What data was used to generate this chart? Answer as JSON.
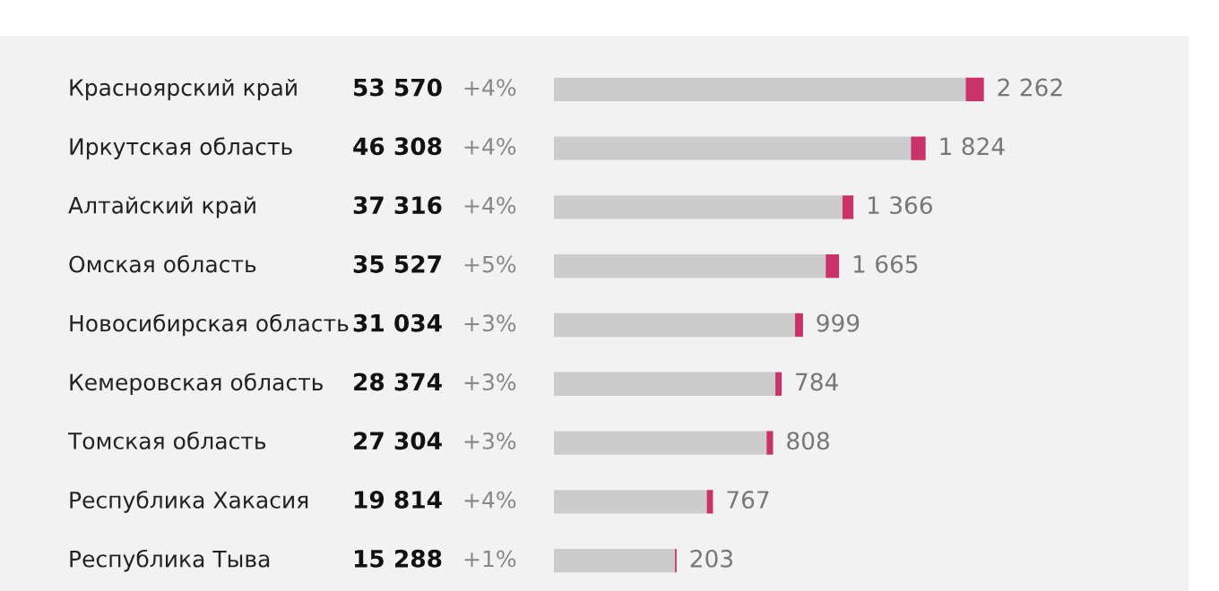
{
  "chart_data": {
    "type": "bar",
    "orientation": "horizontal",
    "stacked": true,
    "categories": [
      "Красноярский край",
      "Иркутская область",
      "Алтайский край",
      "Омская область",
      "Новосибирская область",
      "Кемеровская область",
      "Томская область",
      "Республика Хакасия",
      "Республика Тыва"
    ],
    "series": [
      {
        "color": "#cccccc",
        "values": [
          51308,
          44484,
          35950,
          33862,
          30035,
          27590,
          26496,
          19047,
          15085
        ]
      },
      {
        "color": "#c8336a",
        "values": [
          2262,
          1824,
          1366,
          1665,
          999,
          784,
          808,
          767,
          203
        ],
        "value_labels": [
          "2 262",
          "1 824",
          "1 366",
          "1 665",
          "999",
          "784",
          "808",
          "767",
          "203"
        ]
      }
    ],
    "annotations": [
      "53 570",
      "46 308",
      "37 316",
      "35 527",
      "31 034",
      "28 374",
      "27 304",
      "19 814",
      "15 288",
      "+4%",
      "+4%",
      "+4%",
      "+5%",
      "+3%",
      "+3%",
      "+3%",
      "+4%",
      "+1%"
    ],
    "tick_labels": false
  }
}
